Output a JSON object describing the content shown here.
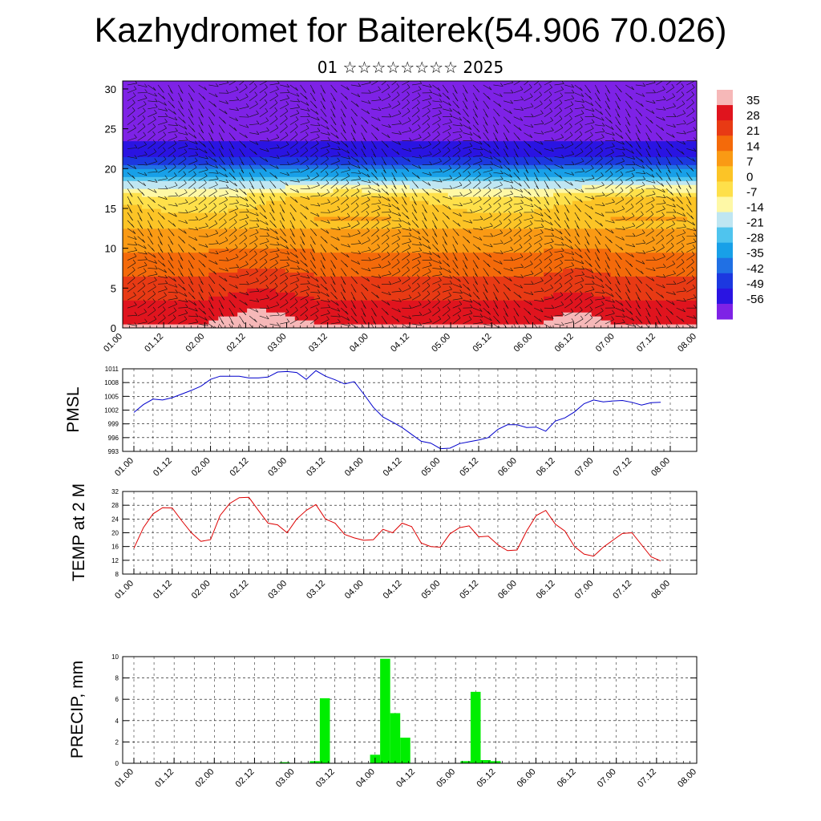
{
  "header": {
    "title": "Kazhydromet for Baiterek(54.906 70.026)",
    "subtitle": "01 ☆☆☆☆☆☆☆☆ 2025"
  },
  "time_labels": [
    "01.00",
    "01.12",
    "02.00",
    "02.12",
    "03.00",
    "03.12",
    "04.00",
    "04.12",
    "05.00",
    "05.12",
    "06.00",
    "06.12",
    "07.00",
    "07.12",
    "08.00"
  ],
  "chart_data": [
    {
      "type": "heatmap",
      "description": "Time-height cross-section of temperature with wind barbs",
      "y_ticks": [
        0,
        5,
        10,
        15,
        20,
        25,
        30
      ],
      "ylim": [
        0,
        31
      ],
      "colorbar": {
        "labels": [
          "35",
          "28",
          "21",
          "14",
          "7",
          "0",
          "-7",
          "-14",
          "-21",
          "-28",
          "-35",
          "-42",
          "-49",
          "-56"
        ],
        "colors": [
          "#f6b8b8",
          "#e0141e",
          "#e83a14",
          "#f46a0a",
          "#fa9a14",
          "#fcc426",
          "#fee04a",
          "#fef8a6",
          "#bfe6f2",
          "#4fc4ee",
          "#18a0e8",
          "#2070e4",
          "#1c38e0",
          "#2a14e2",
          "#7e22e6"
        ]
      }
    },
    {
      "type": "line",
      "ylabel": "PMSL",
      "y_ticks": [
        993,
        996,
        999,
        1002,
        1005,
        1008,
        1011
      ],
      "ylim": [
        993,
        1011
      ],
      "color": "#0000cc",
      "x": [
        0,
        1,
        2,
        3,
        4,
        5,
        6,
        7,
        8,
        9,
        10,
        11,
        12,
        13,
        14,
        15,
        16,
        17,
        18,
        19,
        20,
        21,
        22,
        23,
        24,
        25,
        26,
        27,
        28,
        29,
        30,
        31,
        32,
        33,
        34,
        35,
        36,
        37,
        38,
        39,
        40,
        41,
        42,
        43,
        44,
        45,
        46,
        47,
        48,
        49,
        50,
        51,
        52,
        53,
        54,
        55
      ],
      "values": [
        1001.5,
        1003.2,
        1004.4,
        1004.2,
        1004.7,
        1005.5,
        1006.3,
        1007.2,
        1008.7,
        1009.4,
        1009.4,
        1009.4,
        1009.0,
        1009.0,
        1009.2,
        1010.3,
        1010.4,
        1010.2,
        1008.7,
        1010.6,
        1009.4,
        1008.6,
        1007.7,
        1008.2,
        1005.5,
        1002.6,
        1000.5,
        999.4,
        998.2,
        996.7,
        995.2,
        994.8,
        993.6,
        993.7,
        994.7,
        995.1,
        995.5,
        996.0,
        997.8,
        998.8,
        998.8,
        998.2,
        998.3,
        997.4,
        999.6,
        1000.3,
        1001.6,
        1003.4,
        1004.2,
        1003.8,
        1004.0,
        1004.1,
        1003.7,
        1003.1,
        1003.6,
        1003.7
      ]
    },
    {
      "type": "line",
      "ylabel": "TEMP at 2 M",
      "y_ticks": [
        8,
        12,
        16,
        20,
        24,
        28,
        32
      ],
      "ylim": [
        8,
        32
      ],
      "color": "#dd0000",
      "x": [
        0,
        1,
        2,
        3,
        4,
        5,
        6,
        7,
        8,
        9,
        10,
        11,
        12,
        13,
        14,
        15,
        16,
        17,
        18,
        19,
        20,
        21,
        22,
        23,
        24,
        25,
        26,
        27,
        28,
        29,
        30,
        31,
        32,
        33,
        34,
        35,
        36,
        37,
        38,
        39,
        40,
        41,
        42,
        43,
        44,
        45,
        46,
        47,
        48,
        49,
        50,
        51,
        52,
        53,
        54,
        55
      ],
      "values": [
        15.5,
        21.5,
        25.5,
        27.3,
        27.2,
        23.5,
        20.0,
        17.5,
        18.0,
        25.0,
        28.5,
        30.2,
        30.3,
        26.5,
        22.8,
        22.3,
        20.0,
        24.0,
        26.5,
        28.2,
        24.0,
        22.8,
        19.5,
        18.5,
        17.8,
        18.0,
        21.0,
        20.0,
        22.8,
        21.8,
        17.0,
        16.0,
        15.8,
        19.7,
        21.5,
        22.0,
        18.8,
        19.0,
        16.5,
        14.8,
        15.0,
        20.5,
        25.0,
        26.5,
        22.5,
        20.5,
        16.0,
        13.8,
        13.2,
        15.8,
        17.8,
        19.8,
        20.0,
        16.5,
        13.0,
        11.8
      ]
    },
    {
      "type": "bar",
      "ylabel": "PRECIP, mm",
      "y_ticks": [
        0,
        2,
        4,
        6,
        8,
        10
      ],
      "ylim": [
        0,
        10
      ],
      "color": "#00ee00",
      "x": [
        15,
        18,
        19,
        24,
        25,
        26,
        27,
        33,
        34,
        35,
        36
      ],
      "values": [
        0.1,
        0.2,
        6.1,
        0.8,
        9.8,
        4.7,
        2.4,
        0.2,
        6.7,
        0.3,
        0.2
      ]
    }
  ]
}
